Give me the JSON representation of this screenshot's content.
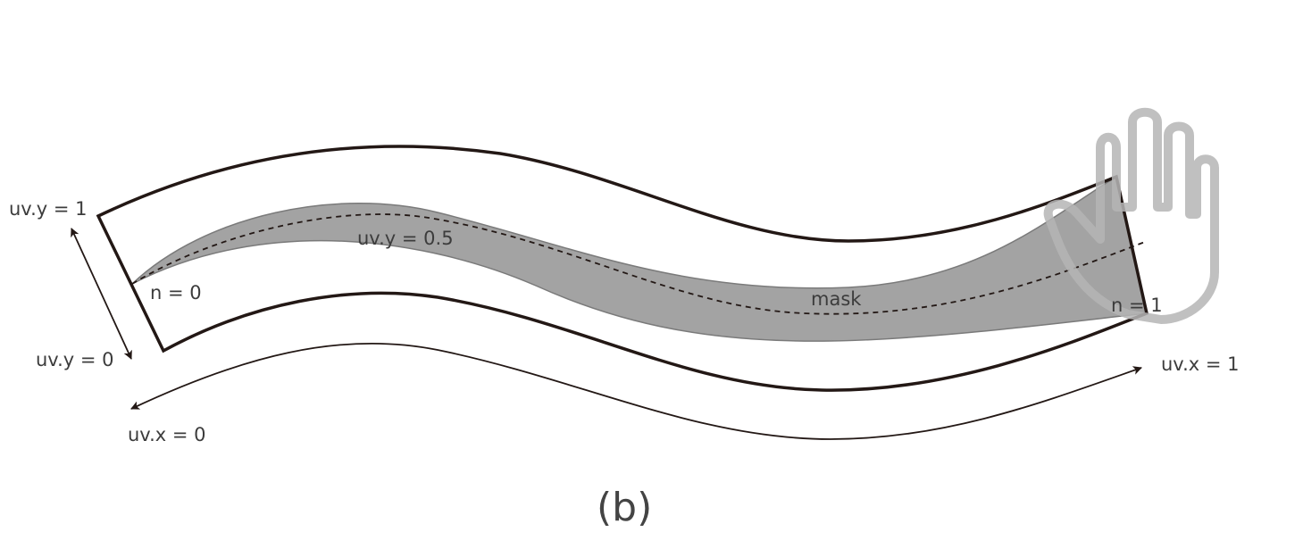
{
  "labels": {
    "uv_y_1": "uv.y = 1",
    "uv_y_0": "uv.y = 0",
    "uv_y_half": "uv.y = 0.5",
    "n_0": "n = 0",
    "n_1": "n = 1",
    "mask": "mask",
    "uv_x_0": "uv.x = 0",
    "uv_x_1": "uv.x = 1"
  },
  "caption": "(b)",
  "colors": {
    "outline": "#231815",
    "mask_fill": "#a3a3a3",
    "mask_edge": "#7a7a7a",
    "hand": "#b5b5b5",
    "text": "#3c3c3c"
  },
  "icons": {
    "hand": "hand-icon"
  }
}
